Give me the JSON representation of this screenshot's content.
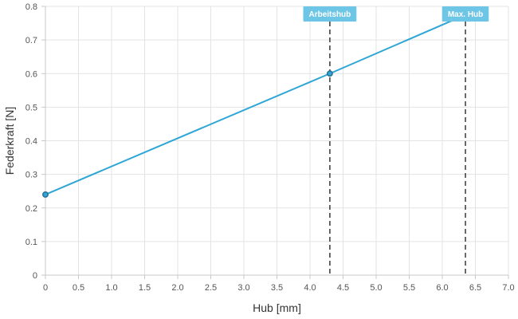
{
  "chart_data": {
    "type": "line",
    "title": "",
    "xlabel": "Hub [mm]",
    "ylabel": "Federkraft [N]",
    "xlim": [
      0,
      7
    ],
    "ylim": [
      0,
      0.8
    ],
    "x_ticks": [
      0,
      0.5,
      1,
      1.5,
      2,
      2.5,
      3,
      3.5,
      4,
      4.5,
      5,
      5.5,
      6,
      6.5,
      7
    ],
    "x_tick_labels": [
      "0",
      "0.5",
      "1.0",
      "1.5",
      "2.0",
      "2.5",
      "3.0",
      "3.5",
      "4.0",
      "4.5",
      "5.0",
      "5.5",
      "6.0",
      "6.5",
      "7.0"
    ],
    "y_ticks": [
      0,
      0.1,
      0.2,
      0.3,
      0.4,
      0.5,
      0.6,
      0.7,
      0.8
    ],
    "y_tick_labels": [
      "0",
      "0.1",
      "0.2",
      "0.3",
      "0.4",
      "0.5",
      "0.6",
      "0.7",
      "0.8"
    ],
    "grid": true,
    "series": [
      {
        "x": [
          0,
          4.3,
          6.35
        ],
        "y": [
          0.24,
          0.6,
          0.775
        ],
        "color": "#2fa6d6"
      }
    ],
    "markers": [
      {
        "label": "Arbeitshub",
        "x": 4.3
      },
      {
        "label": "Max. Hub",
        "x": 6.35
      }
    ]
  }
}
